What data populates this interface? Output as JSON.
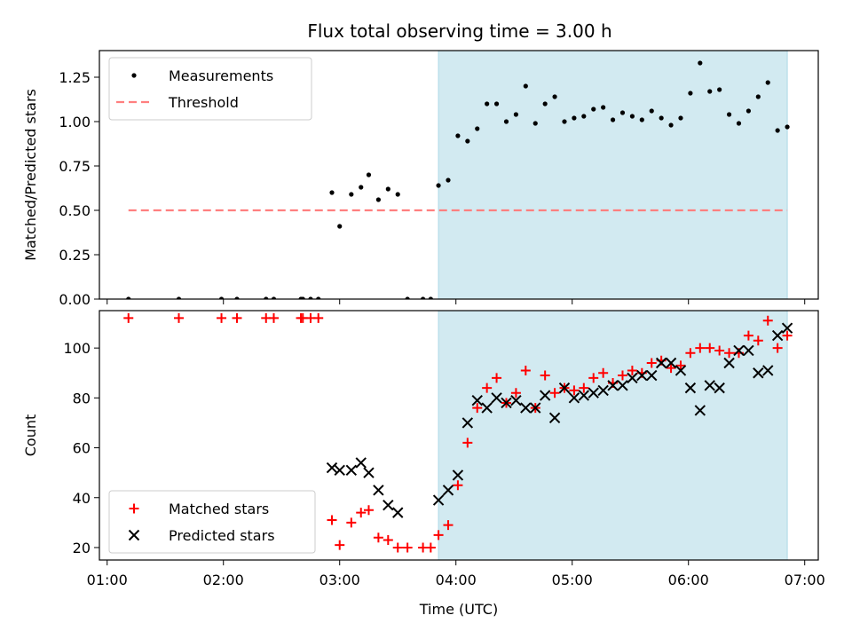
{
  "figure": {
    "title": "Flux total observing time = 3.00 h"
  },
  "colors": {
    "shade": "#add8e6",
    "measurements": "#000000",
    "threshold": "#ff7f7f",
    "matched": "#ff0000",
    "predicted": "#000000"
  },
  "chart_data": [
    {
      "type": "scatter",
      "title": "Flux total observing time = 3.00 h",
      "xlabel": "",
      "ylabel": "Matched/Predicted stars",
      "x_axis": "time (UTC, decimal hours)",
      "xlim": [
        "00:56",
        "07:07"
      ],
      "ylim": [
        0,
        1.4
      ],
      "yticks": [
        "0.00",
        "0.25",
        "0.50",
        "0.75",
        "1.00",
        "1.25"
      ],
      "ytick_values": [
        0,
        0.25,
        0.5,
        0.75,
        1.0,
        1.25
      ],
      "xtick_values": [
        "01:00",
        "02:00",
        "03:00",
        "04:00",
        "05:00",
        "06:00",
        "07:00"
      ],
      "shaded_span": [
        "03:51",
        "06:51"
      ],
      "legend_placement": "top-left",
      "legend": [
        "Measurements",
        "Threshold"
      ],
      "series": [
        {
          "name": "Measurements",
          "marker": "dot",
          "points": [
            [
              "01:11",
              0.0
            ],
            [
              "01:37",
              0.0
            ],
            [
              "01:59",
              0.0
            ],
            [
              "02:07",
              0.0
            ],
            [
              "02:22",
              0.0
            ],
            [
              "02:26",
              0.0
            ],
            [
              "02:40",
              0.0
            ],
            [
              "02:41",
              0.0
            ],
            [
              "02:45",
              0.0
            ],
            [
              "02:49",
              0.0
            ],
            [
              "02:56",
              0.6
            ],
            [
              "03:00",
              0.41
            ],
            [
              "03:06",
              0.59
            ],
            [
              "03:11",
              0.63
            ],
            [
              "03:15",
              0.7
            ],
            [
              "03:20",
              0.56
            ],
            [
              "03:25",
              0.62
            ],
            [
              "03:30",
              0.59
            ],
            [
              "03:35",
              0.0
            ],
            [
              "03:43",
              0.0
            ],
            [
              "03:47",
              0.0
            ],
            [
              "03:51",
              0.64
            ],
            [
              "03:56",
              0.67
            ],
            [
              "04:01",
              0.92
            ],
            [
              "04:06",
              0.89
            ],
            [
              "04:11",
              0.96
            ],
            [
              "04:16",
              1.1
            ],
            [
              "04:21",
              1.1
            ],
            [
              "04:26",
              1.0
            ],
            [
              "04:31",
              1.04
            ],
            [
              "04:36",
              1.2
            ],
            [
              "04:41",
              0.99
            ],
            [
              "04:46",
              1.1
            ],
            [
              "04:51",
              1.14
            ],
            [
              "04:56",
              1.0
            ],
            [
              "05:01",
              1.02
            ],
            [
              "05:06",
              1.03
            ],
            [
              "05:11",
              1.07
            ],
            [
              "05:16",
              1.08
            ],
            [
              "05:21",
              1.01
            ],
            [
              "05:26",
              1.05
            ],
            [
              "05:31",
              1.03
            ],
            [
              "05:36",
              1.01
            ],
            [
              "05:41",
              1.06
            ],
            [
              "05:46",
              1.02
            ],
            [
              "05:51",
              0.98
            ],
            [
              "05:56",
              1.02
            ],
            [
              "06:01",
              1.16
            ],
            [
              "06:06",
              1.33
            ],
            [
              "06:11",
              1.17
            ],
            [
              "06:16",
              1.18
            ],
            [
              "06:21",
              1.04
            ],
            [
              "06:26",
              0.99
            ],
            [
              "06:31",
              1.06
            ],
            [
              "06:36",
              1.14
            ],
            [
              "06:41",
              1.22
            ],
            [
              "06:46",
              0.95
            ],
            [
              "06:51",
              0.97
            ]
          ]
        },
        {
          "name": "Threshold",
          "style": "dashed",
          "x_range": [
            "01:11",
            "06:51"
          ],
          "value": 0.5
        }
      ]
    },
    {
      "type": "scatter",
      "xlabel": "Time (UTC)",
      "ylabel": "Count",
      "xlim": [
        "00:56",
        "07:07"
      ],
      "ylim": [
        15,
        115
      ],
      "yticks": [
        "20",
        "40",
        "60",
        "80",
        "100"
      ],
      "ytick_values": [
        20,
        40,
        60,
        80,
        100
      ],
      "xticks": [
        "01:00",
        "02:00",
        "03:00",
        "04:00",
        "05:00",
        "06:00",
        "07:00"
      ],
      "xtick_values": [
        "01:00",
        "02:00",
        "03:00",
        "04:00",
        "05:00",
        "06:00",
        "07:00"
      ],
      "shaded_span": [
        "03:51",
        "06:51"
      ],
      "legend_placement": "bottom-left",
      "legend": [
        "Matched stars",
        "Predicted stars"
      ],
      "series": [
        {
          "name": "Matched stars",
          "marker": "plus",
          "points": [
            [
              "01:11",
              112
            ],
            [
              "01:37",
              112
            ],
            [
              "01:59",
              112
            ],
            [
              "02:07",
              112
            ],
            [
              "02:22",
              112
            ],
            [
              "02:26",
              112
            ],
            [
              "02:40",
              112
            ],
            [
              "02:41",
              112
            ],
            [
              "02:45",
              112
            ],
            [
              "02:49",
              112
            ],
            [
              "02:56",
              31
            ],
            [
              "03:00",
              21
            ],
            [
              "03:06",
              30
            ],
            [
              "03:11",
              34
            ],
            [
              "03:15",
              35
            ],
            [
              "03:20",
              24
            ],
            [
              "03:25",
              23
            ],
            [
              "03:30",
              20
            ],
            [
              "03:35",
              20
            ],
            [
              "03:43",
              20
            ],
            [
              "03:47",
              20
            ],
            [
              "03:51",
              25
            ],
            [
              "03:56",
              29
            ],
            [
              "04:01",
              45
            ],
            [
              "04:06",
              62
            ],
            [
              "04:11",
              76
            ],
            [
              "04:16",
              84
            ],
            [
              "04:21",
              88
            ],
            [
              "04:26",
              78
            ],
            [
              "04:31",
              82
            ],
            [
              "04:36",
              91
            ],
            [
              "04:41",
              76
            ],
            [
              "04:46",
              89
            ],
            [
              "04:51",
              82
            ],
            [
              "04:56",
              84
            ],
            [
              "05:01",
              83
            ],
            [
              "05:06",
              84
            ],
            [
              "05:11",
              88
            ],
            [
              "05:16",
              90
            ],
            [
              "05:21",
              86
            ],
            [
              "05:26",
              89
            ],
            [
              "05:31",
              91
            ],
            [
              "05:36",
              90
            ],
            [
              "05:41",
              94
            ],
            [
              "05:46",
              95
            ],
            [
              "05:51",
              92
            ],
            [
              "05:56",
              93
            ],
            [
              "06:01",
              98
            ],
            [
              "06:06",
              100
            ],
            [
              "06:11",
              100
            ],
            [
              "06:16",
              99
            ],
            [
              "06:21",
              98
            ],
            [
              "06:26",
              98
            ],
            [
              "06:31",
              105
            ],
            [
              "06:36",
              103
            ],
            [
              "06:41",
              111
            ],
            [
              "06:46",
              100
            ],
            [
              "06:51",
              105
            ]
          ]
        },
        {
          "name": "Predicted stars",
          "marker": "x",
          "points": [
            [
              "02:56",
              52
            ],
            [
              "03:00",
              51
            ],
            [
              "03:06",
              51
            ],
            [
              "03:11",
              54
            ],
            [
              "03:15",
              50
            ],
            [
              "03:20",
              43
            ],
            [
              "03:25",
              37
            ],
            [
              "03:30",
              34
            ],
            [
              "03:51",
              39
            ],
            [
              "03:56",
              43
            ],
            [
              "04:01",
              49
            ],
            [
              "04:06",
              70
            ],
            [
              "04:11",
              79
            ],
            [
              "04:16",
              76
            ],
            [
              "04:21",
              80
            ],
            [
              "04:26",
              78
            ],
            [
              "04:31",
              79
            ],
            [
              "04:36",
              76
            ],
            [
              "04:41",
              76
            ],
            [
              "04:46",
              81
            ],
            [
              "04:51",
              72
            ],
            [
              "04:56",
              84
            ],
            [
              "05:01",
              80
            ],
            [
              "05:06",
              81
            ],
            [
              "05:11",
              82
            ],
            [
              "05:16",
              83
            ],
            [
              "05:21",
              85
            ],
            [
              "05:26",
              85
            ],
            [
              "05:31",
              88
            ],
            [
              "05:36",
              89
            ],
            [
              "05:41",
              89
            ],
            [
              "05:46",
              94
            ],
            [
              "05:51",
              94
            ],
            [
              "05:56",
              91
            ],
            [
              "06:01",
              84
            ],
            [
              "06:06",
              75
            ],
            [
              "06:11",
              85
            ],
            [
              "06:16",
              84
            ],
            [
              "06:21",
              94
            ],
            [
              "06:26",
              99
            ],
            [
              "06:31",
              99
            ],
            [
              "06:36",
              90
            ],
            [
              "06:41",
              91
            ],
            [
              "06:46",
              105
            ],
            [
              "06:51",
              108
            ]
          ]
        }
      ]
    }
  ]
}
